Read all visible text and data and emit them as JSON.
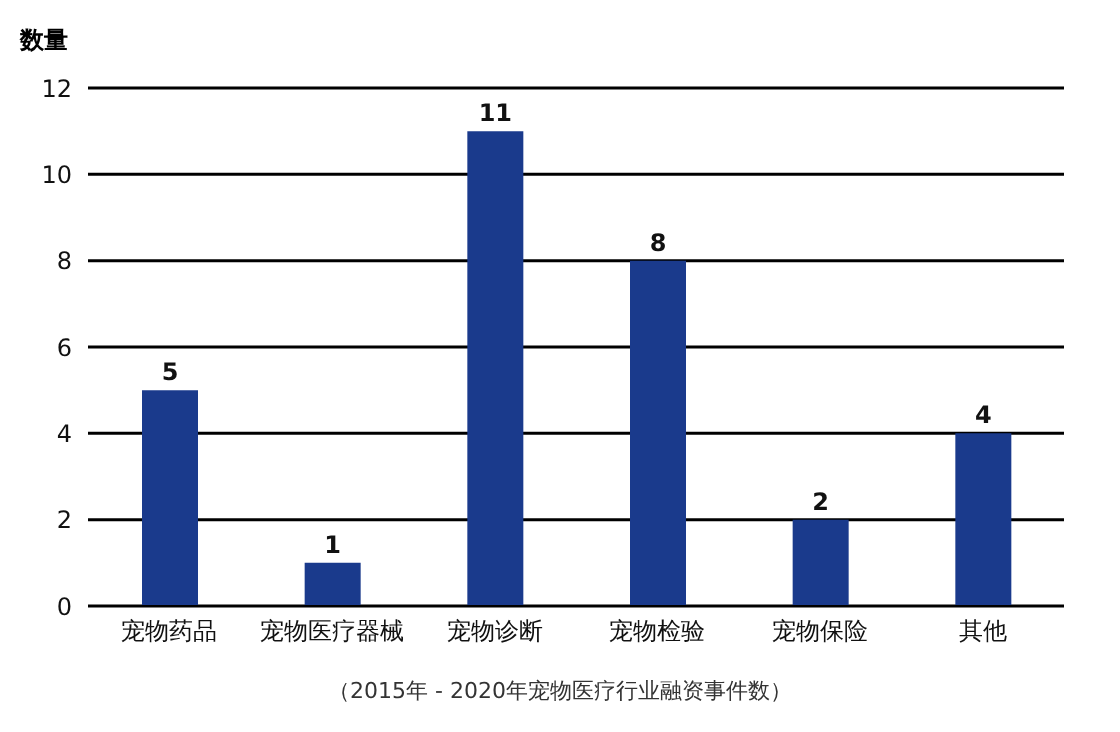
{
  "chart_data": {
    "type": "bar",
    "ylabel": "数量",
    "annotations": [
      "（2015年 - 2020年宠物医疗行业融资事件数）"
    ],
    "categories": [
      "宠物药品",
      "宠物医疗器械",
      "宠物诊断",
      "宠物检验",
      "宠物保险",
      "其他"
    ],
    "values": [
      5,
      1,
      11,
      8,
      2,
      4
    ],
    "color": "#1a3a8c",
    "ylim": [
      0,
      12
    ],
    "yticks": [
      0,
      2,
      4,
      6,
      8,
      10,
      12
    ],
    "grid": "y",
    "data_labels": true
  }
}
